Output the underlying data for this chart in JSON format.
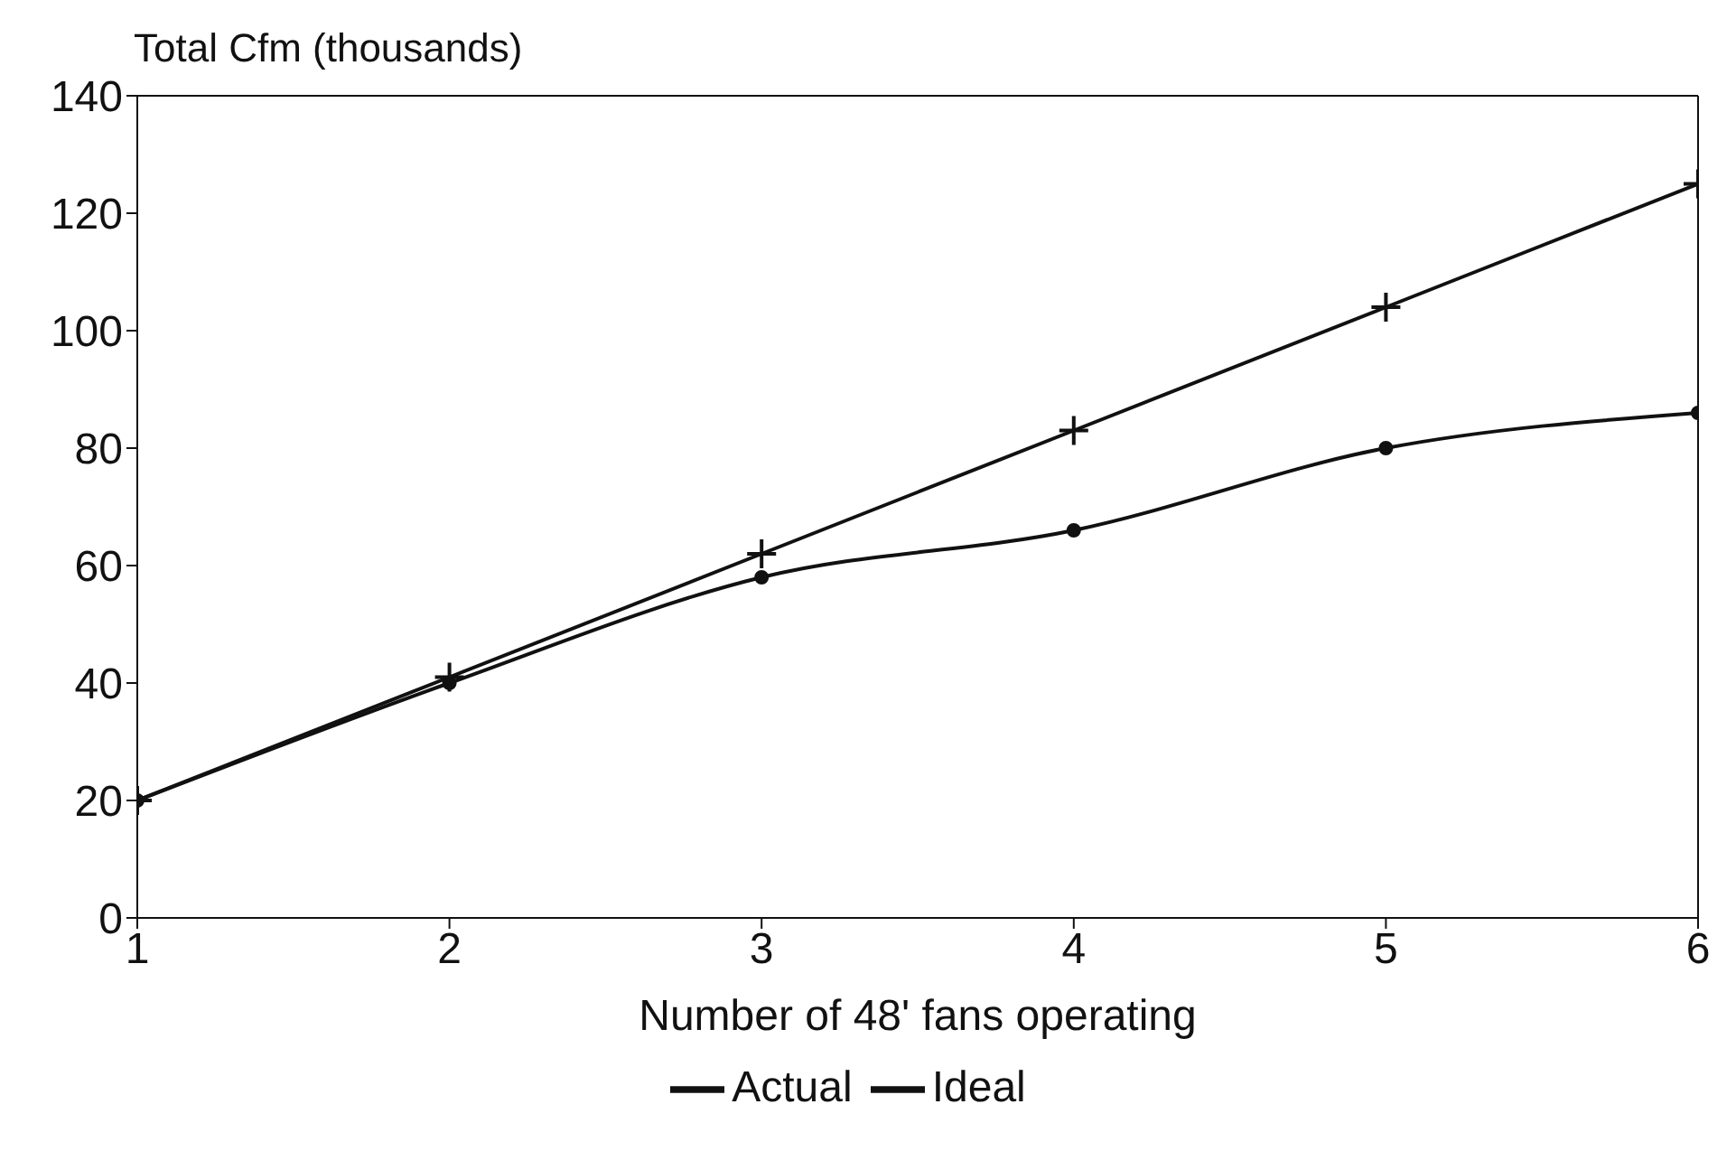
{
  "chart_data": {
    "type": "line",
    "ylabel": "Total Cfm (thousands)",
    "xlabel": "Number of 48' fans operating",
    "x": [
      1,
      2,
      3,
      4,
      5,
      6
    ],
    "xlim": [
      1,
      6
    ],
    "xticks": [
      1,
      2,
      3,
      4,
      5,
      6
    ],
    "ylim": [
      0,
      140
    ],
    "yticks": [
      0,
      20,
      40,
      60,
      80,
      100,
      120,
      140
    ],
    "legend": "bottom",
    "series": [
      {
        "name": "Actual",
        "color": "#111111",
        "marker": "circle",
        "values": [
          20,
          40,
          58,
          66,
          80,
          86
        ]
      },
      {
        "name": "Ideal",
        "color": "#111111",
        "marker": "cross",
        "values": [
          20,
          41,
          62,
          83,
          104,
          125
        ]
      }
    ]
  }
}
